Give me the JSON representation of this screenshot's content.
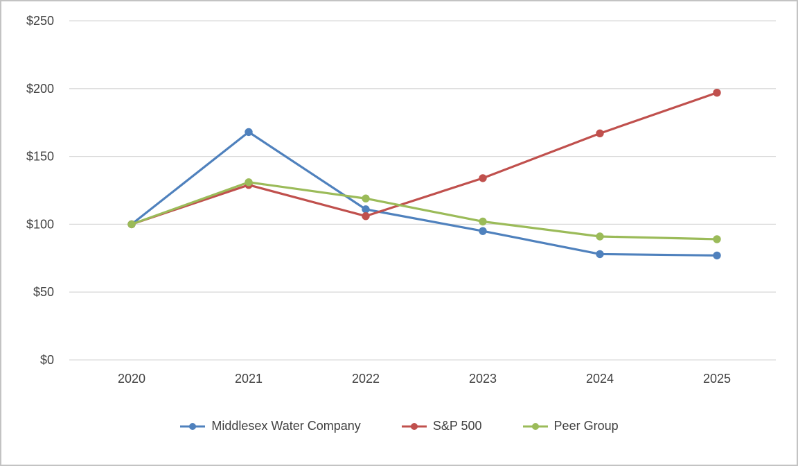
{
  "chart_data": {
    "type": "line",
    "categories": [
      "2020",
      "2021",
      "2022",
      "2023",
      "2024",
      "2025"
    ],
    "series": [
      {
        "name": "Middlesex Water Company",
        "color": "#4F81BD",
        "values": [
          100,
          168,
          111,
          95,
          78,
          77
        ]
      },
      {
        "name": "S&P 500",
        "color": "#C0504D",
        "values": [
          100,
          129,
          106,
          134,
          167,
          197
        ]
      },
      {
        "name": "Peer Group",
        "color": "#9BBB59",
        "values": [
          100,
          131,
          119,
          102,
          91,
          89
        ]
      }
    ],
    "ylim": [
      0,
      250
    ],
    "ytick_interval": 50,
    "ytick_labels": [
      "$0",
      "$50",
      "$100",
      "$150",
      "$200",
      "$250"
    ],
    "grid": "horizontal",
    "gridline_color": "#D9D9D9",
    "axis_label_color": "#404040",
    "legend_position": "bottom"
  }
}
